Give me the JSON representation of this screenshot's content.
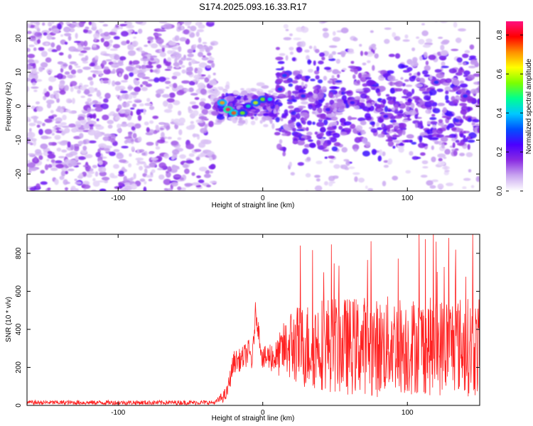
{
  "title": "S174.2025.093.16.33.R17",
  "chart_data": [
    {
      "type": "heatmap",
      "xlabel": "Height of straight line (km)",
      "ylabel": "Frequency (Hz)",
      "xlim": [
        -163,
        150
      ],
      "ylim": [
        -25,
        25
      ],
      "x_ticks": [
        -100,
        0,
        100
      ],
      "x_tick_labels": [
        "-100",
        "0",
        "100"
      ],
      "y_ticks": [
        -20,
        -10,
        0,
        10,
        20
      ],
      "y_tick_labels": [
        "-20",
        "-10",
        "0",
        "10",
        "20"
      ],
      "colorbar": {
        "label": "Normalized spectral amplitude",
        "range": [
          0,
          0.87
        ],
        "ticks": [
          0,
          0.2,
          0.4,
          0.6,
          0.8
        ],
        "tick_labels": [
          "0.0",
          "0.2",
          "0.4",
          "0.6",
          "0.8"
        ],
        "colormap": [
          "#ffffff",
          "#c9a6f0",
          "#8a2be2",
          "#4b00ff",
          "#0050ff",
          "#00c8ff",
          "#00ff90",
          "#7cff00",
          "#ffff00",
          "#ff9000",
          "#ff0000",
          "#ff1080"
        ]
      },
      "regions": [
        {
          "name": "noise",
          "x_range": [
            -163,
            -33
          ],
          "y_range": [
            -25,
            25
          ],
          "amplitude": 0.12
        },
        {
          "name": "signal",
          "x_range": [
            -33,
            150
          ],
          "center_freq": 0,
          "spread_hz": 6,
          "amplitude": 0.2
        }
      ],
      "hotspots": [
        {
          "x": -28,
          "y": 1,
          "amp": 0.7
        },
        {
          "x": -24,
          "y": -1,
          "amp": 0.85
        },
        {
          "x": -20,
          "y": -2,
          "amp": 0.75
        },
        {
          "x": -14,
          "y": -2,
          "amp": 0.55
        },
        {
          "x": -10,
          "y": 0,
          "amp": 0.45
        },
        {
          "x": -5,
          "y": 1,
          "amp": 0.6
        },
        {
          "x": 0,
          "y": 2,
          "amp": 0.55
        },
        {
          "x": 5,
          "y": 2,
          "amp": 0.4
        },
        {
          "x": 12,
          "y": 5,
          "amp": 0.3
        },
        {
          "x": 15,
          "y": 9,
          "amp": 0.3
        },
        {
          "x": 28,
          "y": 3,
          "amp": 0.28
        },
        {
          "x": 45,
          "y": -1,
          "amp": 0.25
        },
        {
          "x": 62,
          "y": 1,
          "amp": 0.25
        },
        {
          "x": 85,
          "y": -3,
          "amp": 0.25
        },
        {
          "x": 120,
          "y": 7,
          "amp": 0.28
        },
        {
          "x": 140,
          "y": 3,
          "amp": 0.28
        }
      ]
    },
    {
      "type": "line",
      "xlabel": "Height of straight line (km)",
      "ylabel": "SNR (10 * v/v)",
      "xlim": [
        -163,
        150
      ],
      "ylim": [
        0,
        900
      ],
      "x_ticks": [
        -100,
        0,
        100
      ],
      "x_tick_labels": [
        "-100",
        "0",
        "100"
      ],
      "y_ticks": [
        0,
        200,
        400,
        600,
        800
      ],
      "y_tick_labels": [
        "0",
        "200",
        "400",
        "600",
        "800"
      ],
      "color": "#ff2020",
      "series": [
        {
          "x": [
            -163,
            -120,
            -80,
            -40,
            -33,
            -25,
            -20,
            -15,
            -10,
            -7,
            -5,
            0,
            5,
            10,
            15,
            20,
            30,
            40,
            50,
            60,
            70,
            80,
            90,
            100,
            110,
            120,
            130,
            140,
            150
          ],
          "y": [
            15,
            15,
            15,
            15,
            15,
            60,
            230,
            240,
            280,
            240,
            500,
            240,
            260,
            250,
            300,
            320,
            310,
            330,
            320,
            310,
            320,
            300,
            330,
            310,
            320,
            300,
            330,
            310,
            300
          ],
          "spread": [
            12,
            12,
            12,
            12,
            10,
            40,
            60,
            60,
            70,
            80,
            50,
            60,
            80,
            100,
            150,
            200,
            230,
            250,
            260,
            260,
            260,
            260,
            260,
            260,
            260,
            260,
            260,
            260,
            260
          ]
        }
      ]
    }
  ]
}
